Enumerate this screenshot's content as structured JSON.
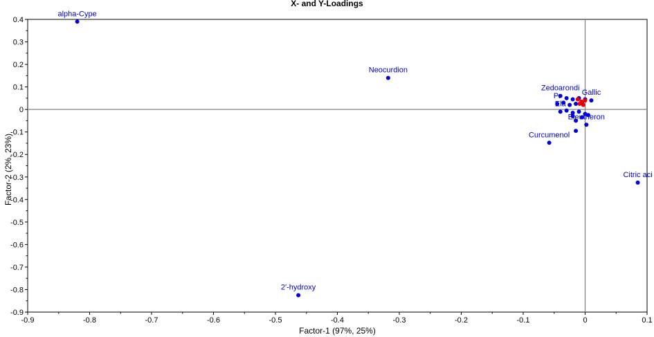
{
  "chart_data": {
    "type": "scatter",
    "title": "X- and Y-Loadings",
    "xlabel": "Factor-1 (97%, 25%)",
    "ylabel": "Factor-2 (2%, 23%)",
    "xlim": [
      -0.9,
      0.1
    ],
    "ylim": [
      -0.9,
      0.4
    ],
    "x_ticks": [
      "-0.9",
      "-0.8",
      "-0.7",
      "-0.6",
      "-0.5",
      "-0.4",
      "-0.3",
      "-0.2",
      "-0.1",
      "0",
      "0.1"
    ],
    "y_ticks": [
      "0.4",
      "0.3",
      "0.2",
      "0.1",
      "0",
      "-0.1",
      "-0.2",
      "-0.3",
      "-0.4",
      "-0.5",
      "-0.6",
      "-0.7",
      "-0.8",
      "-0.9"
    ],
    "grid": false,
    "points": [
      {
        "x": -0.82,
        "y": 0.39,
        "label": "alpha-Cype"
      },
      {
        "x": -0.318,
        "y": 0.14,
        "label": "Neocurdion"
      },
      {
        "x": -0.463,
        "y": -0.825,
        "label": "2'-hydroxy"
      },
      {
        "x": -0.058,
        "y": -0.148,
        "label": "Curcumenol"
      },
      {
        "x": 0.085,
        "y": -0.325,
        "label": "Citric aci"
      },
      {
        "x": -0.015,
        "y": -0.095,
        "label": ""
      },
      {
        "x": 0.002,
        "y": -0.068,
        "label": "Eleutheron"
      },
      {
        "x": -0.04,
        "y": 0.06,
        "label": "Zedoarondi"
      },
      {
        "x": -0.03,
        "y": 0.05,
        "label": ""
      },
      {
        "x": -0.02,
        "y": 0.045,
        "label": ""
      },
      {
        "x": -0.01,
        "y": 0.05,
        "label": ""
      },
      {
        "x": 0.0,
        "y": 0.045,
        "label": ""
      },
      {
        "x": 0.01,
        "y": 0.04,
        "label": "Gallic"
      },
      {
        "x": -0.035,
        "y": 0.03,
        "label": ""
      },
      {
        "x": -0.025,
        "y": 0.02,
        "label": ""
      },
      {
        "x": -0.015,
        "y": 0.025,
        "label": ""
      },
      {
        "x": -0.005,
        "y": 0.03,
        "label": ""
      },
      {
        "x": -0.045,
        "y": 0.025,
        "label": "Pr"
      },
      {
        "x": -0.03,
        "y": -0.005,
        "label": ""
      },
      {
        "x": -0.02,
        "y": -0.015,
        "label": ""
      },
      {
        "x": -0.01,
        "y": -0.01,
        "label": ""
      },
      {
        "x": 0.0,
        "y": -0.02,
        "label": ""
      },
      {
        "x": -0.04,
        "y": -0.01,
        "label": "Ela"
      },
      {
        "x": -0.02,
        "y": -0.03,
        "label": ""
      },
      {
        "x": 0.005,
        "y": -0.025,
        "label": ""
      },
      {
        "x": -0.015,
        "y": -0.05,
        "label": ""
      },
      {
        "x": -0.005,
        "y": -0.035,
        "label": ""
      }
    ],
    "y_points": [
      {
        "x": -0.012,
        "y": 0.045,
        "label": ""
      },
      {
        "x": -0.006,
        "y": 0.035,
        "label": ""
      },
      {
        "x": 0.0,
        "y": 0.04,
        "label": ""
      },
      {
        "x": -0.009,
        "y": 0.025,
        "label": ""
      },
      {
        "x": -0.003,
        "y": 0.02,
        "label": ""
      }
    ]
  }
}
